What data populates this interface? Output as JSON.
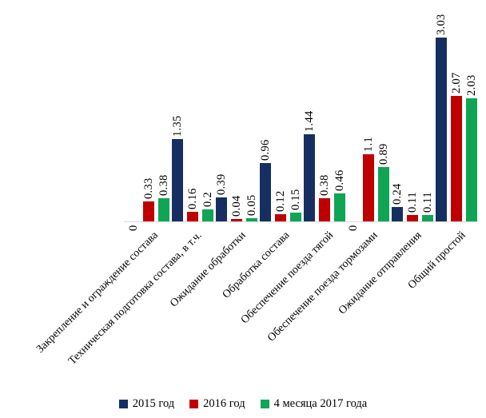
{
  "chart_data": {
    "type": "bar",
    "title": "",
    "categories": [
      "Закрепление и ограждение состава",
      "Техническая подготовка состава, в т.ч.",
      "Ожидание обработки",
      "Обработка состава",
      "Обеспечение поезда тягой",
      "Обеспечение поезда тормозами",
      "Ожидание отправления",
      "Общий простой"
    ],
    "series": [
      {
        "name": "2015 год",
        "color": "#172f60",
        "values": [
          0,
          1.35,
          0.39,
          0.96,
          1.44,
          0,
          0.24,
          3.03
        ]
      },
      {
        "name": "2016 год",
        "color": "#c00000",
        "values": [
          0.33,
          0.16,
          0.04,
          0.12,
          0.38,
          1.1,
          0.11,
          2.07
        ]
      },
      {
        "name": "4 месяца 2017 года",
        "color": "#0fa554",
        "values": [
          0.38,
          0.2,
          0.05,
          0.15,
          0.46,
          0.89,
          0.11,
          2.03
        ]
      }
    ],
    "value_labels_rotation": 90,
    "category_labels_rotation": -45,
    "ylim": [
      0,
      3.2
    ],
    "grid": false,
    "y_axis_visible": false,
    "legend_position": "bottom",
    "axis_line_color": "#d9d9d9",
    "text_color": "#000000",
    "background": "#ffffff"
  }
}
